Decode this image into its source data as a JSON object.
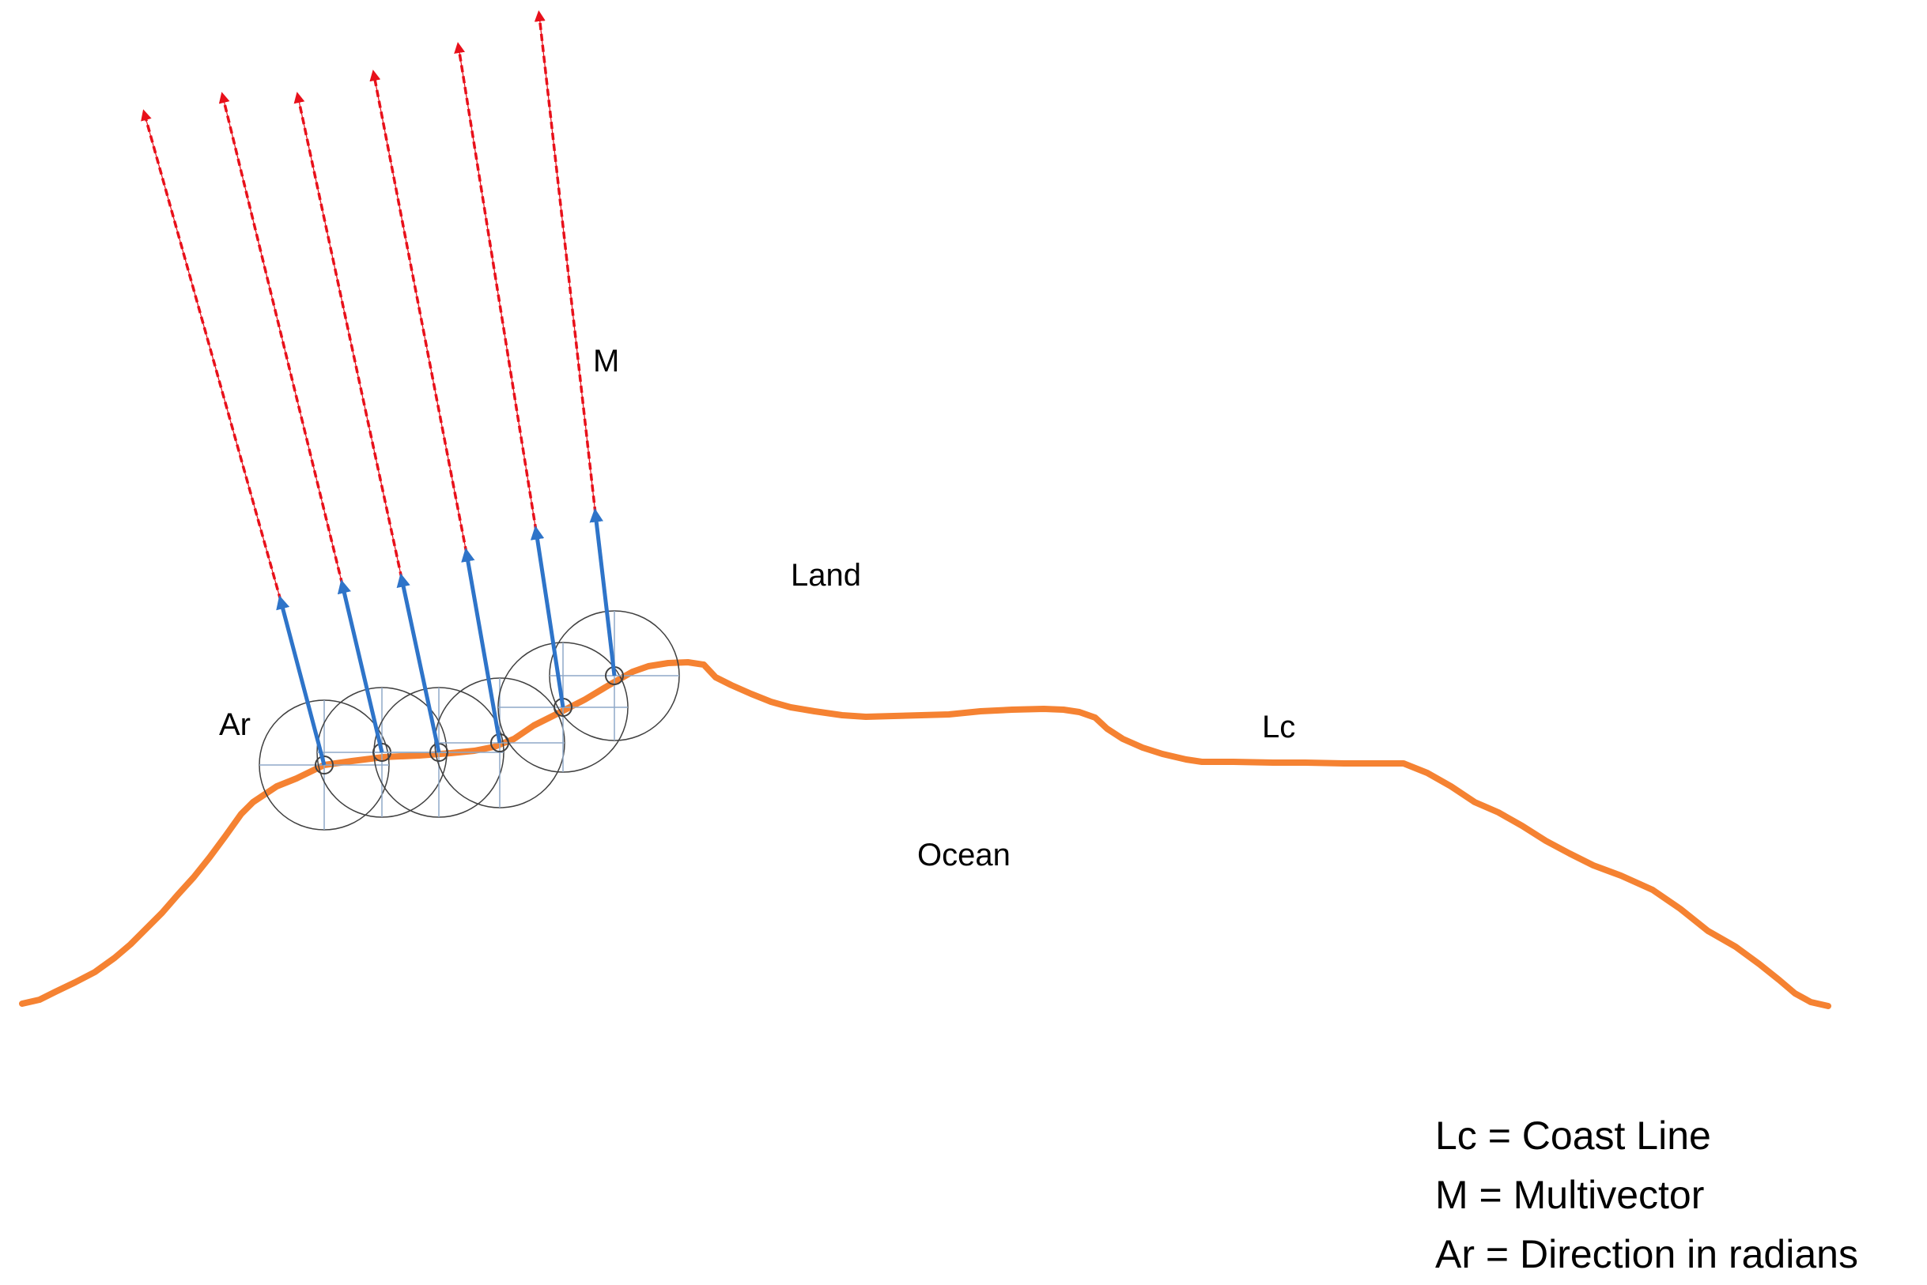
{
  "labels": {
    "m": "M",
    "land": "Land",
    "ar": "Ar",
    "lc": "Lc",
    "ocean": "Ocean"
  },
  "legend": [
    "Lc = Coast Line",
    "M = Multivector",
    "Ar = Direction in radians"
  ],
  "colors": {
    "coastline": "#F58232",
    "multivector": "#E8101A",
    "direction_arrow": "#2E74C9",
    "circle": "#404040",
    "crosshair": "#8FA9C8",
    "text": "#000000"
  }
}
